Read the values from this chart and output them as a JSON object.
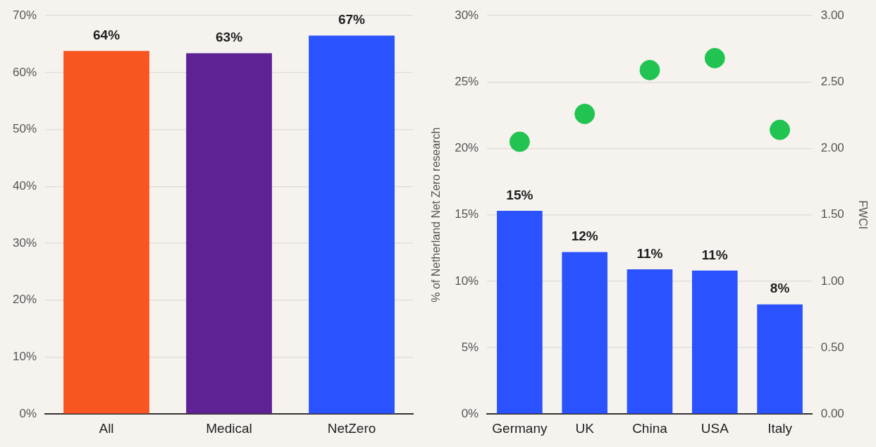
{
  "chart_data": [
    {
      "type": "bar",
      "categories": [
        "All",
        "Medical",
        "NetZero"
      ],
      "values": [
        63.8,
        63.4,
        66.5
      ],
      "colors": [
        "#f95520",
        "#5e2294",
        "#2a52fe"
      ],
      "value_labels": [
        "64%",
        "63%",
        "67%"
      ],
      "ylim": [
        0,
        70
      ],
      "yticks": [
        {
          "value": 0,
          "label": "0%"
        },
        {
          "value": 10,
          "label": "10%"
        },
        {
          "value": 20,
          "label": "20%"
        },
        {
          "value": 30,
          "label": "30%"
        },
        {
          "value": 40,
          "label": "40%"
        },
        {
          "value": 50,
          "label": "50%"
        },
        {
          "value": 60,
          "label": "60%"
        },
        {
          "value": 70,
          "label": "70%"
        }
      ],
      "grid": "y"
    },
    {
      "type": "bar",
      "categories": [
        "Germany",
        "UK",
        "China",
        "USA",
        "Italy"
      ],
      "ylabel": "% of Netherland Net Zero research",
      "y2label": "FWCI",
      "series": [
        {
          "color": "#2a52fe",
          "values": [
            15.3,
            12.2,
            10.9,
            10.8,
            8.26
          ],
          "value_labels": [
            "15%",
            "12%",
            "11%",
            "11%",
            "8%"
          ]
        },
        {
          "type": "scatter",
          "axis": "y2",
          "color": "#22c451",
          "x": [
            "Germany",
            "UK",
            "China",
            "USA",
            "Italy"
          ],
          "values": [
            2.05,
            2.26,
            2.59,
            2.68,
            2.14
          ]
        }
      ],
      "marker": "circle",
      "ylim": [
        0,
        30
      ],
      "yticks": [
        {
          "value": 0,
          "label": "0%"
        },
        {
          "value": 5,
          "label": "5%"
        },
        {
          "value": 10,
          "label": "10%"
        },
        {
          "value": 15,
          "label": "15%"
        },
        {
          "value": 20,
          "label": "20%"
        },
        {
          "value": 25,
          "label": "25%"
        },
        {
          "value": 30,
          "label": "30%"
        }
      ],
      "y2lim": [
        0,
        3
      ],
      "y2ticks": [
        {
          "value": 0,
          "label": "0.00"
        },
        {
          "value": 0.5,
          "label": "0.50"
        },
        {
          "value": 1,
          "label": "1.00"
        },
        {
          "value": 1.5,
          "label": "1.50"
        },
        {
          "value": 2,
          "label": "2.00"
        },
        {
          "value": 2.5,
          "label": "2.50"
        },
        {
          "value": 3,
          "label": "3.00"
        }
      ],
      "grid": "y"
    }
  ]
}
